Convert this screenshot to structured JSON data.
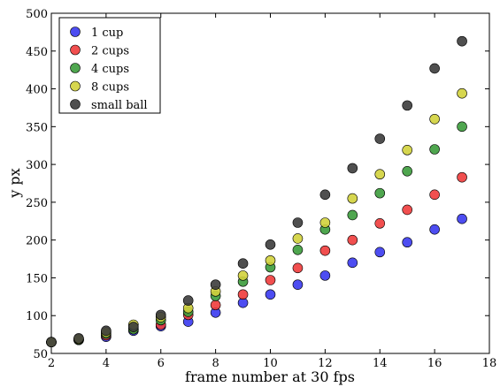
{
  "chart_data": {
    "type": "scatter",
    "title": "",
    "xlabel": "frame number at 30 fps",
    "ylabel": "y  px",
    "xlim": [
      2,
      18
    ],
    "ylim": [
      50,
      500
    ],
    "xticks": [
      2,
      4,
      6,
      8,
      10,
      12,
      14,
      16,
      18
    ],
    "yticks": [
      50,
      100,
      150,
      200,
      250,
      300,
      350,
      400,
      450,
      500
    ],
    "grid": false,
    "legend_position": "top-left",
    "series": [
      {
        "name": "1 cup",
        "color": "#3a3af0",
        "x": [
          2,
          3,
          4,
          5,
          6,
          7,
          8,
          9,
          10,
          11,
          12,
          13,
          14,
          15,
          16,
          17
        ],
        "y": [
          65,
          68,
          72,
          80,
          86,
          92,
          104,
          117,
          128,
          141,
          153,
          170,
          184,
          197,
          214,
          228
        ]
      },
      {
        "name": "2 cups",
        "color": "#f03c3c",
        "x": [
          2,
          3,
          4,
          5,
          6,
          7,
          8,
          9,
          10,
          11,
          12,
          13,
          14,
          15,
          16,
          17
        ],
        "y": [
          65,
          68,
          74,
          82,
          88,
          101,
          114,
          128,
          147,
          163,
          186,
          200,
          222,
          240,
          260,
          283
        ]
      },
      {
        "name": "4 cups",
        "color": "#3c9c3c",
        "x": [
          2,
          3,
          4,
          5,
          6,
          7,
          8,
          9,
          10,
          11,
          12,
          13,
          14,
          15,
          16,
          17
        ],
        "y": [
          65,
          68,
          76,
          82,
          94,
          105,
          126,
          145,
          164,
          187,
          214,
          233,
          262,
          291,
          320,
          350
        ]
      },
      {
        "name": "8 cups",
        "color": "#d2d23c",
        "x": [
          2,
          3,
          4,
          5,
          6,
          7,
          8,
          9,
          10,
          11,
          12,
          13,
          14,
          15,
          16,
          17
        ],
        "y": [
          65,
          69,
          78,
          88,
          98,
          110,
          132,
          153,
          173,
          202,
          223,
          255,
          287,
          319,
          360,
          394
        ]
      },
      {
        "name": "small ball",
        "color": "#3c3c3c",
        "x": [
          2,
          3,
          4,
          5,
          6,
          7,
          8,
          9,
          10,
          11,
          12,
          13,
          14,
          15,
          16,
          17
        ],
        "y": [
          65,
          70,
          80,
          85,
          101,
          120,
          141,
          169,
          194,
          223,
          260,
          295,
          334,
          378,
          427,
          463
        ]
      }
    ]
  }
}
